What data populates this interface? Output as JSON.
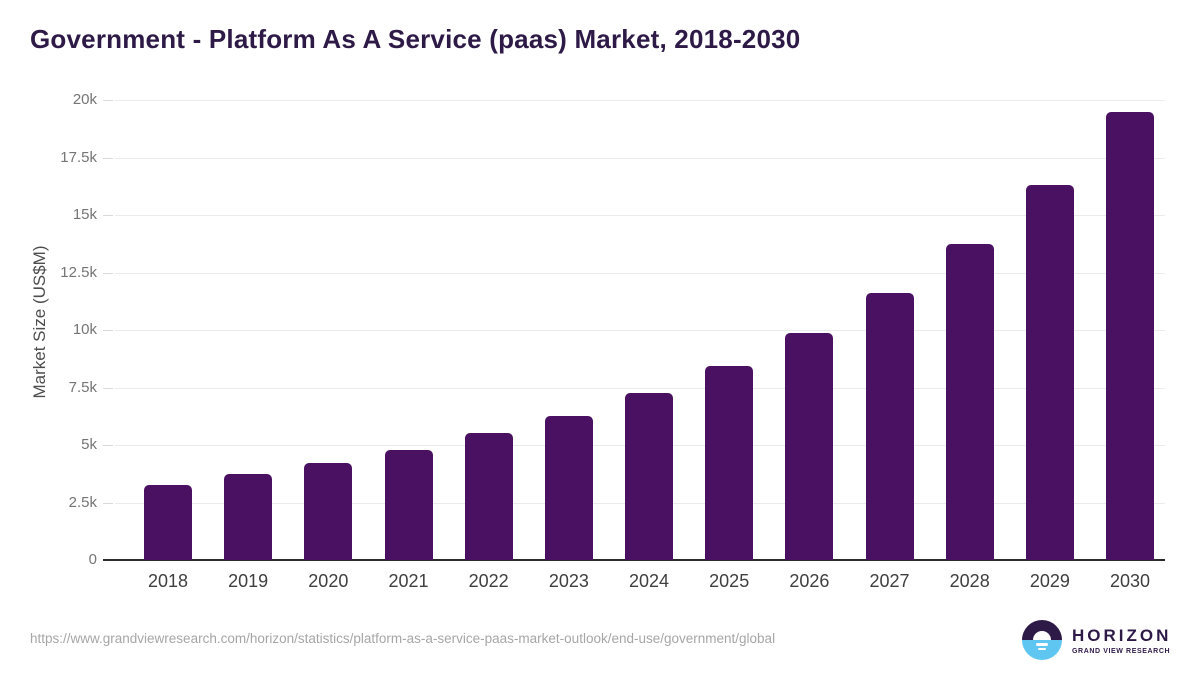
{
  "title": "Government - Platform As A Service (paas) Market, 2018-2030",
  "chart_data": {
    "type": "bar",
    "title": "Government - Platform As A Service (paas) Market, 2018-2030",
    "categories": [
      "2018",
      "2019",
      "2020",
      "2021",
      "2022",
      "2023",
      "2024",
      "2025",
      "2026",
      "2027",
      "2028",
      "2029",
      "2030"
    ],
    "values": [
      3270,
      3730,
      4200,
      4780,
      5510,
      6270,
      7250,
      8430,
      9890,
      11590,
      13740,
      16300,
      19500
    ],
    "xlabel": "",
    "ylabel": "Market Size (US$M)",
    "ylim": [
      0,
      20000
    ],
    "ytick_values": [
      0,
      2500,
      5000,
      7500,
      10000,
      12500,
      15000,
      17500,
      20000
    ],
    "ytick_labels": [
      "0",
      "2.5k",
      "5k",
      "7.5k",
      "10k",
      "12.5k",
      "15k",
      "17.5k",
      "20k"
    ],
    "grid": "horizontal",
    "legend": "none"
  },
  "footer": {
    "source_url": "https://www.grandviewresearch.com/horizon/statistics/platform-as-a-service-paas-market-outlook/end-use/government/global",
    "logo": {
      "name": "HORIZON",
      "subtitle": "GRAND VIEW RESEARCH"
    }
  },
  "colors": {
    "bar": "#4a1162",
    "title_text": "#2e1a47",
    "logo_purple": "#2e1a47",
    "logo_blue": "#5ec6f0",
    "gridline": "#ebebeb",
    "axis_line": "#2b2b2b",
    "y_tick_text": "#757575",
    "x_tick_text": "#3f3f3f",
    "url_text": "#a6a6a6"
  }
}
